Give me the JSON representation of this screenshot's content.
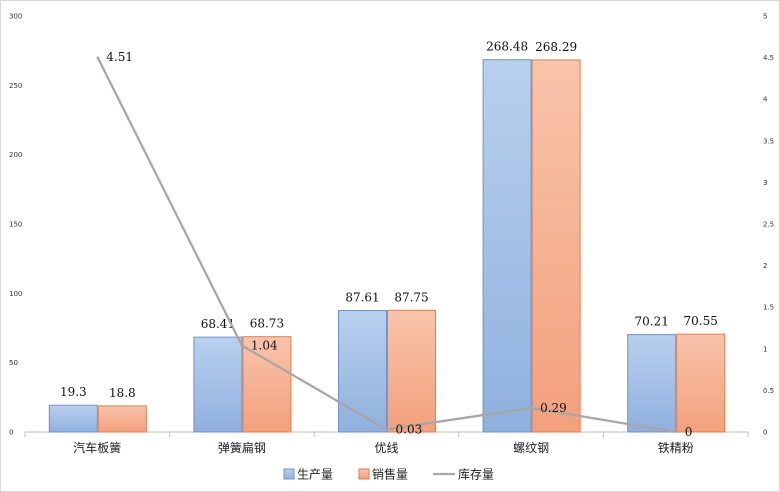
{
  "chart_data": {
    "type": "bar",
    "categories": [
      "汽车板簧",
      "弹簧扁钢",
      "优线",
      "螺纹钢",
      "铁精粉"
    ],
    "series": [
      {
        "name": "生产量",
        "kind": "bar",
        "axis": "left",
        "values": [
          19.3,
          68.41,
          87.61,
          268.48,
          70.21
        ],
        "labels": [
          "19.3",
          "68.41",
          "87.61",
          "268.48",
          "70.21"
        ]
      },
      {
        "name": "销售量",
        "kind": "bar",
        "axis": "left",
        "values": [
          18.8,
          68.73,
          87.75,
          268.29,
          70.55
        ],
        "labels": [
          "18.8",
          "68.73",
          "87.75",
          "268.29",
          "70.55"
        ]
      },
      {
        "name": "库存量",
        "kind": "line",
        "axis": "right",
        "values": [
          4.51,
          1.04,
          0.03,
          0.29,
          0
        ],
        "labels": [
          "4.51",
          "1.04",
          "0.03",
          "0.29",
          "0"
        ]
      }
    ],
    "y_left": {
      "ylim": [
        0,
        300
      ],
      "ticks": [
        "0",
        "50",
        "100",
        "150",
        "200",
        "250",
        "300"
      ]
    },
    "y_right": {
      "ylim": [
        0,
        5
      ],
      "ticks": [
        "0",
        "0.5",
        "1",
        "1.5",
        "2",
        "2.5",
        "3",
        "3.5",
        "4",
        "4.5",
        "5"
      ]
    },
    "grid": false,
    "legend": "bottom-center",
    "colors": {
      "生产量": "#a9c4e8",
      "销售量": "#f6b596",
      "库存量": "#a6a6a6"
    }
  }
}
